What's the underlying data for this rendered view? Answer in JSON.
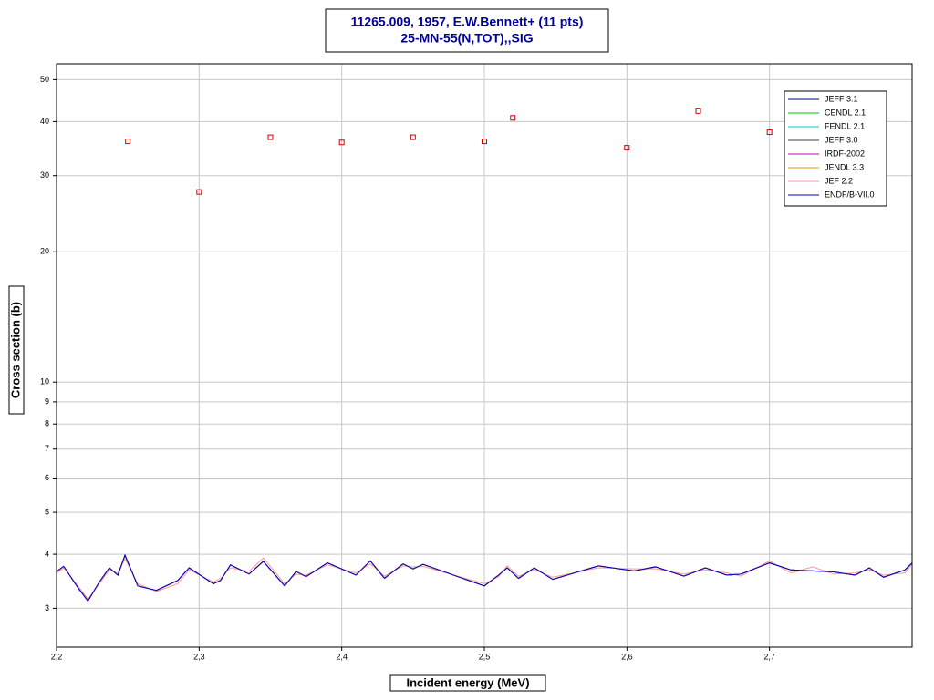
{
  "chart_data": {
    "type": "line",
    "title": "11265.009, 1957, E.W.Bennett+ (11 pts)",
    "subtitle": "25-MN-55(N,TOT),,SIG",
    "x_label": "Incident energy (MeV)",
    "y_label": "Cross section (b)",
    "log_y": true,
    "grid": true,
    "legend": "upper right",
    "xlim": [
      2.2,
      2.8
    ],
    "ylim": [
      2.44,
      54.4
    ],
    "xticks": [
      {
        "value": 2.2,
        "label": "2,2"
      },
      {
        "value": 2.3,
        "label": "2,3"
      },
      {
        "value": 2.4,
        "label": "2,4"
      },
      {
        "value": 2.5,
        "label": "2,5"
      },
      {
        "value": 2.6,
        "label": "2,6"
      },
      {
        "value": 2.7,
        "label": "2,7"
      }
    ],
    "yticks": [
      3,
      4,
      5,
      6,
      7,
      8,
      9,
      10,
      20,
      30,
      40,
      50
    ],
    "x": [
      2.2,
      2.205,
      2.215,
      2.222,
      2.23,
      2.237,
      2.243,
      2.248,
      2.257,
      2.27,
      2.285,
      2.293,
      2.31,
      2.315,
      2.322,
      2.335,
      2.345,
      2.36,
      2.368,
      2.375,
      2.39,
      2.41,
      2.42,
      2.43,
      2.443,
      2.45,
      2.457,
      2.5,
      2.51,
      2.516,
      2.524,
      2.535,
      2.548,
      2.58,
      2.605,
      2.62,
      2.64,
      2.655,
      2.67,
      2.68,
      2.7,
      2.715,
      2.73,
      2.745,
      2.76,
      2.77,
      2.78,
      2.795,
      2.8
    ],
    "series": [
      {
        "name": "JEFF 3.1",
        "color": "#000080",
        "values": [
          3.65,
          3.75,
          3.35,
          3.12,
          3.45,
          3.72,
          3.58,
          3.98,
          3.38,
          3.3,
          3.48,
          3.72,
          3.42,
          3.48,
          3.78,
          3.6,
          3.85,
          3.38,
          3.65,
          3.55,
          3.82,
          3.58,
          3.86,
          3.52,
          3.8,
          3.7,
          3.79,
          3.38,
          3.58,
          3.72,
          3.52,
          3.72,
          3.5,
          3.76,
          3.66,
          3.74,
          3.56,
          3.72,
          3.58,
          3.6,
          3.82,
          3.68,
          3.66,
          3.64,
          3.58,
          3.72,
          3.54,
          3.68,
          3.82
        ]
      },
      {
        "name": "CENDL 2.1",
        "color": "#00c000",
        "values": [
          3.65,
          3.75,
          3.35,
          3.12,
          3.45,
          3.72,
          3.58,
          3.98,
          3.38,
          3.3,
          3.48,
          3.72,
          3.42,
          3.48,
          3.78,
          3.6,
          3.85,
          3.38,
          3.65,
          3.55,
          3.82,
          3.58,
          3.86,
          3.52,
          3.8,
          3.7,
          3.79,
          3.38,
          3.58,
          3.72,
          3.52,
          3.72,
          3.5,
          3.76,
          3.66,
          3.74,
          3.56,
          3.72,
          3.58,
          3.6,
          3.82,
          3.68,
          3.66,
          3.64,
          3.58,
          3.72,
          3.54,
          3.68,
          3.82
        ]
      },
      {
        "name": "FENDL 2.1",
        "color": "#00c8c8",
        "values": [
          3.65,
          3.75,
          3.35,
          3.12,
          3.45,
          3.72,
          3.58,
          3.98,
          3.38,
          3.3,
          3.48,
          3.72,
          3.42,
          3.48,
          3.78,
          3.6,
          3.85,
          3.38,
          3.65,
          3.55,
          3.82,
          3.58,
          3.86,
          3.52,
          3.8,
          3.7,
          3.79,
          3.38,
          3.58,
          3.72,
          3.52,
          3.72,
          3.5,
          3.76,
          3.66,
          3.74,
          3.56,
          3.72,
          3.58,
          3.6,
          3.82,
          3.68,
          3.66,
          3.64,
          3.58,
          3.72,
          3.54,
          3.68,
          3.82
        ]
      },
      {
        "name": "JEFF 3.0",
        "color": "#404040",
        "values": [
          3.65,
          3.75,
          3.35,
          3.12,
          3.45,
          3.72,
          3.58,
          3.98,
          3.38,
          3.3,
          3.48,
          3.72,
          3.42,
          3.48,
          3.78,
          3.6,
          3.85,
          3.38,
          3.65,
          3.55,
          3.82,
          3.58,
          3.86,
          3.52,
          3.8,
          3.7,
          3.79,
          3.38,
          3.58,
          3.72,
          3.52,
          3.72,
          3.5,
          3.76,
          3.66,
          3.74,
          3.56,
          3.72,
          3.58,
          3.6,
          3.82,
          3.68,
          3.66,
          3.64,
          3.58,
          3.72,
          3.54,
          3.68,
          3.82
        ]
      },
      {
        "name": "IRDF-2002",
        "color": "#c000c0",
        "values": [
          3.65,
          3.75,
          3.35,
          3.12,
          3.45,
          3.72,
          3.58,
          3.98,
          3.38,
          3.3,
          3.48,
          3.72,
          3.42,
          3.48,
          3.78,
          3.6,
          3.85,
          3.38,
          3.65,
          3.55,
          3.82,
          3.58,
          3.86,
          3.52,
          3.8,
          3.7,
          3.79,
          3.38,
          3.58,
          3.72,
          3.52,
          3.72,
          3.5,
          3.76,
          3.66,
          3.74,
          3.56,
          3.72,
          3.58,
          3.6,
          3.82,
          3.68,
          3.66,
          3.64,
          3.58,
          3.72,
          3.54,
          3.68,
          3.82
        ]
      },
      {
        "name": "JENDL 3.3",
        "color": "#e0a000",
        "values": [
          3.65,
          3.75,
          3.35,
          3.12,
          3.45,
          3.72,
          3.58,
          3.98,
          3.38,
          3.3,
          3.48,
          3.72,
          3.42,
          3.48,
          3.78,
          3.6,
          3.85,
          3.38,
          3.65,
          3.55,
          3.82,
          3.58,
          3.86,
          3.52,
          3.8,
          3.7,
          3.79,
          3.38,
          3.58,
          3.72,
          3.52,
          3.72,
          3.5,
          3.76,
          3.66,
          3.74,
          3.56,
          3.72,
          3.58,
          3.6,
          3.82,
          3.68,
          3.66,
          3.64,
          3.58,
          3.72,
          3.54,
          3.68,
          3.82
        ]
      },
      {
        "name": "JEF 2.2",
        "color": "#ff9999",
        "values": [
          3.62,
          3.72,
          3.38,
          3.15,
          3.42,
          3.68,
          3.62,
          3.9,
          3.42,
          3.28,
          3.42,
          3.68,
          3.45,
          3.52,
          3.72,
          3.65,
          3.92,
          3.42,
          3.6,
          3.58,
          3.78,
          3.62,
          3.8,
          3.56,
          3.76,
          3.74,
          3.75,
          3.42,
          3.55,
          3.76,
          3.56,
          3.68,
          3.54,
          3.72,
          3.7,
          3.7,
          3.6,
          3.68,
          3.62,
          3.56,
          3.86,
          3.62,
          3.74,
          3.6,
          3.62,
          3.68,
          3.58,
          3.62,
          3.8
        ]
      },
      {
        "name": "ENDF/B-VII.0",
        "color": "#0000c8",
        "values": [
          3.65,
          3.75,
          3.35,
          3.12,
          3.45,
          3.72,
          3.58,
          3.98,
          3.38,
          3.3,
          3.48,
          3.72,
          3.42,
          3.48,
          3.78,
          3.6,
          3.85,
          3.38,
          3.65,
          3.55,
          3.82,
          3.58,
          3.86,
          3.52,
          3.8,
          3.7,
          3.79,
          3.38,
          3.58,
          3.72,
          3.52,
          3.72,
          3.5,
          3.76,
          3.66,
          3.74,
          3.56,
          3.72,
          3.58,
          3.6,
          3.82,
          3.68,
          3.66,
          3.64,
          3.58,
          3.72,
          3.54,
          3.68,
          3.82
        ]
      }
    ],
    "experiment": {
      "color": "#d00000",
      "x": [
        2.25,
        2.3,
        2.35,
        2.4,
        2.45,
        2.5,
        2.52,
        2.6,
        2.65,
        2.7
      ],
      "values": [
        36,
        27.5,
        36.8,
        35.8,
        36.8,
        36,
        40.8,
        34.8,
        42.3,
        37.8
      ]
    }
  }
}
